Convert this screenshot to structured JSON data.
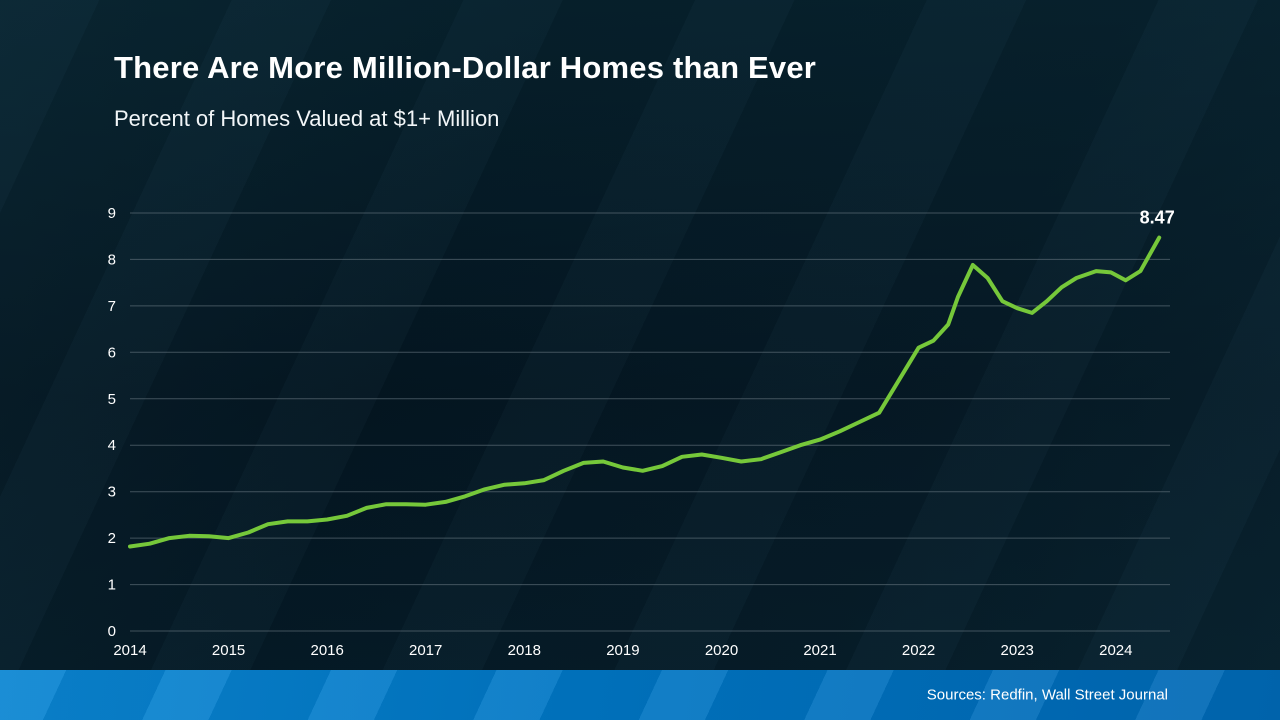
{
  "title": "There Are More Million-Dollar Homes than Ever",
  "subtitle": "Percent of Homes Valued at $1+ Million",
  "source": "Sources: Redfin, Wall Street Journal",
  "colors": {
    "background": "#04141d",
    "line": "#76c83a",
    "grid": "#72818a",
    "banner": "#0077c6",
    "text": "#ffffff"
  },
  "chart_data": {
    "type": "line",
    "title": "There Are More Million-Dollar Homes than Ever",
    "xlabel": "",
    "ylabel": "Percent of Homes Valued at $1+ Million",
    "xlim": [
      2014,
      2024.55
    ],
    "ylim": [
      0,
      9
    ],
    "yticks": [
      0,
      1,
      2,
      3,
      4,
      5,
      6,
      7,
      8,
      9
    ],
    "xticks": [
      2014,
      2015,
      2016,
      2017,
      2018,
      2019,
      2020,
      2021,
      2022,
      2023,
      2024
    ],
    "grid": true,
    "legend_position": "none",
    "end_label": "8.47",
    "series": [
      {
        "name": "Percent of Homes Valued at $1+ Million",
        "x": [
          2014.0,
          2014.2,
          2014.4,
          2014.6,
          2014.8,
          2015.0,
          2015.2,
          2015.4,
          2015.6,
          2015.8,
          2016.0,
          2016.2,
          2016.4,
          2016.6,
          2016.8,
          2017.0,
          2017.2,
          2017.4,
          2017.6,
          2017.8,
          2018.0,
          2018.2,
          2018.4,
          2018.6,
          2018.8,
          2019.0,
          2019.2,
          2019.4,
          2019.6,
          2019.8,
          2020.0,
          2020.2,
          2020.4,
          2020.6,
          2020.8,
          2021.0,
          2021.2,
          2021.4,
          2021.6,
          2021.8,
          2022.0,
          2022.15,
          2022.3,
          2022.4,
          2022.55,
          2022.7,
          2022.85,
          2023.0,
          2023.15,
          2023.3,
          2023.45,
          2023.6,
          2023.8,
          2023.95,
          2024.1,
          2024.25,
          2024.44
        ],
        "y": [
          1.82,
          1.88,
          2.0,
          2.05,
          2.04,
          2.0,
          2.12,
          2.3,
          2.36,
          2.36,
          2.4,
          2.48,
          2.65,
          2.73,
          2.73,
          2.72,
          2.78,
          2.9,
          3.05,
          3.15,
          3.18,
          3.25,
          3.45,
          3.62,
          3.65,
          3.52,
          3.45,
          3.55,
          3.75,
          3.8,
          3.73,
          3.65,
          3.7,
          3.85,
          4.0,
          4.12,
          4.3,
          4.5,
          4.7,
          5.4,
          6.1,
          6.25,
          6.6,
          7.2,
          7.88,
          7.6,
          7.1,
          6.95,
          6.85,
          7.1,
          7.4,
          7.6,
          7.75,
          7.72,
          7.55,
          7.75,
          8.47
        ]
      }
    ]
  }
}
